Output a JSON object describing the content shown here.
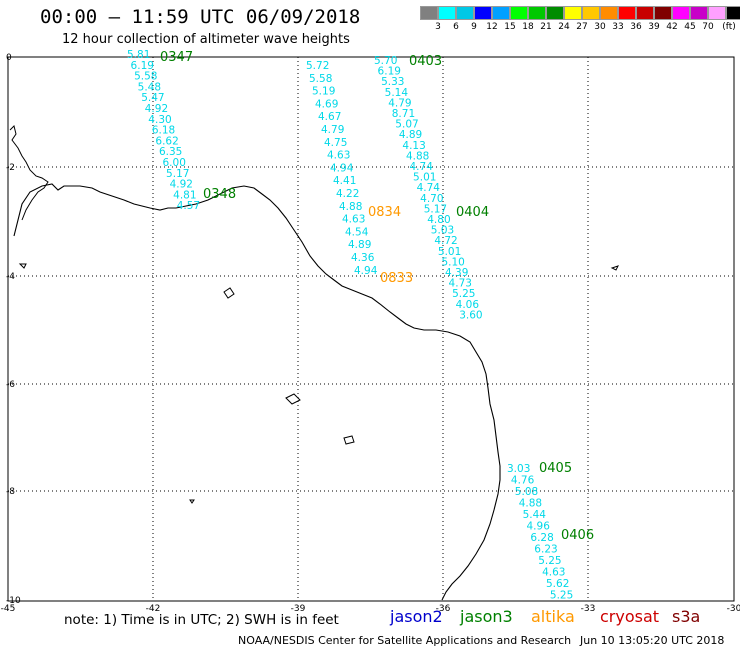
{
  "header": {
    "title": "00:00 – 11:59 UTC 06/09/2018",
    "subtitle": "12 hour collection of altimeter wave heights"
  },
  "legend": {
    "unit": "(ft)",
    "colors": [
      "#808080",
      "#00ffff",
      "#00c8e6",
      "#0000ff",
      "#00a0ff",
      "#00ff00",
      "#00c800",
      "#008c00",
      "#ffff00",
      "#ffc800",
      "#ff8c00",
      "#ff0000",
      "#c80000",
      "#800000",
      "#ff00ff",
      "#c800c8",
      "#ffa0ff",
      "#000000"
    ],
    "labels": [
      "3",
      "6",
      "9",
      "12",
      "15",
      "18",
      "21",
      "24",
      "27",
      "30",
      "33",
      "36",
      "39",
      "42",
      "45",
      "70"
    ]
  },
  "axes": {
    "x_ticks": [
      "-45",
      "-42",
      "-39",
      "-36",
      "-33",
      "-30"
    ],
    "y_ticks": [
      "0",
      "-2",
      "-4",
      "-6",
      "-8",
      "-10"
    ]
  },
  "tracks": [
    {
      "time": "0347",
      "color": "#008000",
      "label_pos": "track-0347"
    },
    {
      "time": "0348",
      "color": "#008000"
    },
    {
      "time": "0403",
      "color": "#008000"
    },
    {
      "time": "0404",
      "color": "#008000"
    },
    {
      "time": "0405",
      "color": "#008000"
    },
    {
      "time": "0406",
      "color": "#008000"
    },
    {
      "time": "0834",
      "color": "#ff9900"
    },
    {
      "time": "0833",
      "color": "#ff9900"
    }
  ],
  "values": {
    "track_a": [
      "5.81",
      "6.19",
      "5.58",
      "5.48",
      "5.47",
      "4.92",
      "4.30",
      "6.18",
      "6.62",
      "6.35",
      "6.00",
      "5.17",
      "4.92",
      "4.81",
      "4.57"
    ],
    "track_b": [
      "5.72",
      "5.58",
      "5.19",
      "4.69",
      "4.67",
      "4.79",
      "4.75",
      "4.63",
      "4.94",
      "4.41",
      "4.22",
      "4.88",
      "4.63",
      "4.54",
      "4.89",
      "4.36",
      "4.94"
    ],
    "track_c": [
      "5.70",
      "6.19",
      "5.33",
      "5.14",
      "4.79",
      "8.71",
      "5.07",
      "4.89",
      "4.13",
      "4.88",
      "4.74",
      "5.01",
      "4.74",
      "4.70",
      "5.17",
      "4.80",
      "5.03",
      "4.72",
      "5.01",
      "5.10",
      "4.39",
      "4.73",
      "5.25",
      "4.06",
      "3.60"
    ],
    "track_d": [
      "3.03",
      "4.76",
      "5.08",
      "4.88",
      "5.44",
      "4.96",
      "6.28",
      "6.23",
      "5.25",
      "4.63",
      "5.62",
      "5.25"
    ]
  },
  "footer": {
    "note": "note: 1) Time is in UTC; 2) SWH is in feet",
    "satellites": [
      {
        "name": "jason2",
        "color": "#0000cc"
      },
      {
        "name": "jason3",
        "color": "#008000"
      },
      {
        "name": "altika",
        "color": "#ff9900"
      },
      {
        "name": "cryosat",
        "color": "#cc0000"
      },
      {
        "name": "s3a",
        "color": "#800000"
      }
    ],
    "credit": "NOAA/NESDIS Center for Satellite Applications and Research",
    "generated": "Jun 10 13:05:20 UTC 2018"
  }
}
